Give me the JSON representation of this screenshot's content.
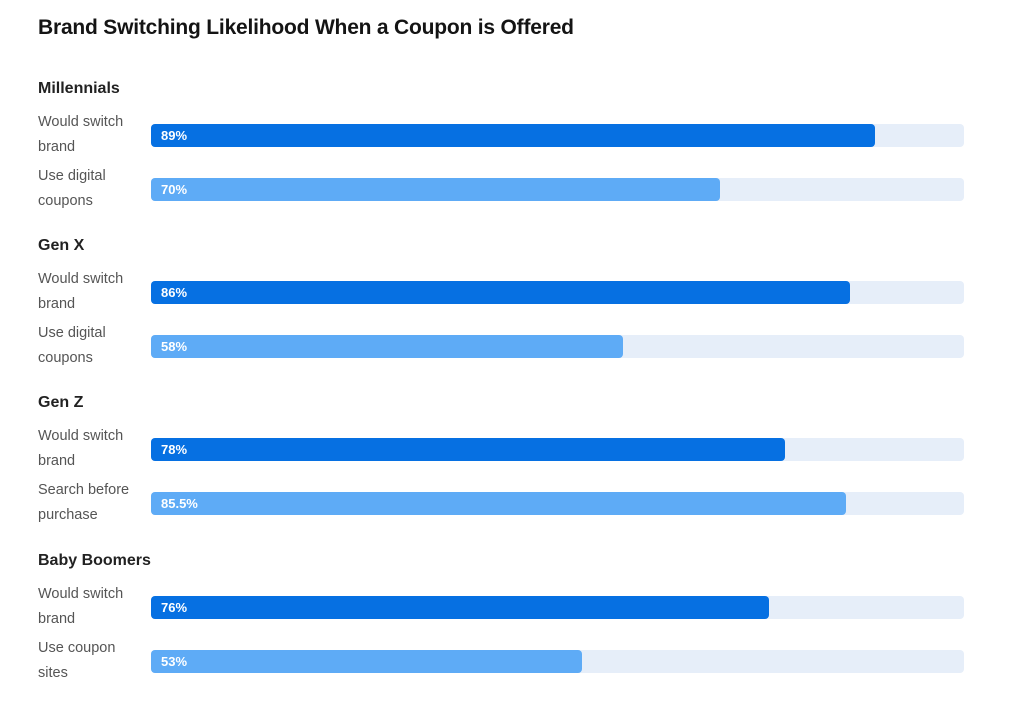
{
  "chart_title": "Brand Switching Likelihood When a Coupon is Offered",
  "colors": {
    "primary_bar": "#0670e2",
    "secondary_bar": "#5eabf6",
    "track": "#e6eef9"
  },
  "chart_data": {
    "type": "bar",
    "orientation": "horizontal",
    "title": "Brand Switching Likelihood When a Coupon is Offered",
    "xlim": [
      0,
      100
    ],
    "unit": "%",
    "groups": [
      {
        "name": "Millennials",
        "bars": [
          {
            "label": "Would switch brand",
            "value": 89,
            "display": "89%",
            "style": "primary"
          },
          {
            "label": "Use digital coupons",
            "value": 70,
            "display": "70%",
            "style": "secondary"
          }
        ]
      },
      {
        "name": "Gen X",
        "bars": [
          {
            "label": "Would switch brand",
            "value": 86,
            "display": "86%",
            "style": "primary"
          },
          {
            "label": "Use digital coupons",
            "value": 58,
            "display": "58%",
            "style": "secondary"
          }
        ]
      },
      {
        "name": "Gen Z",
        "bars": [
          {
            "label": "Would switch brand",
            "value": 78,
            "display": "78%",
            "style": "primary"
          },
          {
            "label": "Search before purchase",
            "value": 85.5,
            "display": "85.5%",
            "style": "secondary"
          }
        ]
      },
      {
        "name": "Baby Boomers",
        "bars": [
          {
            "label": "Would switch brand",
            "value": 76,
            "display": "76%",
            "style": "primary"
          },
          {
            "label": "Use coupon sites",
            "value": 53,
            "display": "53%",
            "style": "secondary"
          }
        ]
      }
    ]
  }
}
